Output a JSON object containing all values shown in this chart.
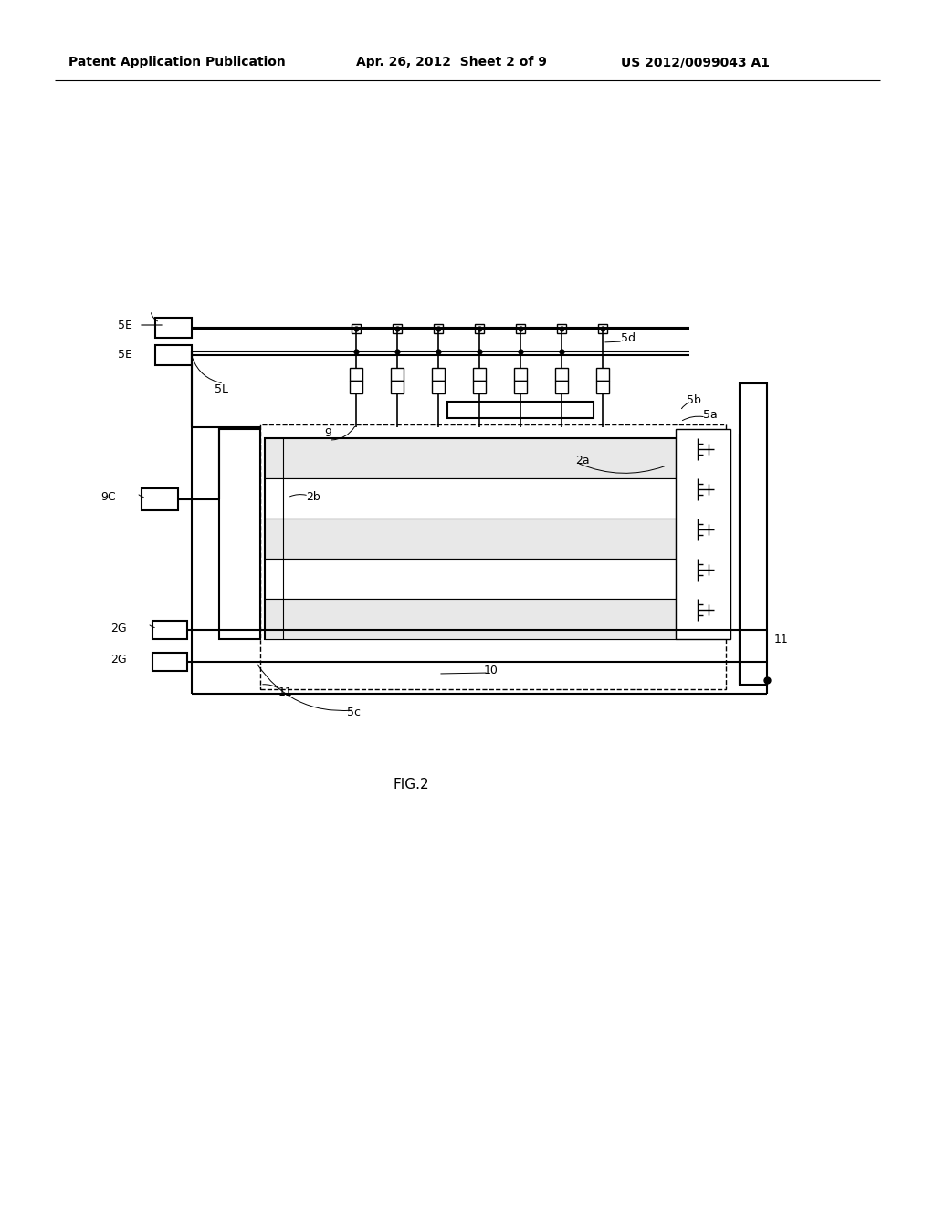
{
  "bg_color": "#ffffff",
  "line_color": "#000000",
  "header_left": "Patent Application Publication",
  "header_center": "Apr. 26, 2012  Sheet 2 of 9",
  "header_right": "US 2012/0099043 A1",
  "fig_label": "FIG.2",
  "labels": {
    "5E_top": "5E",
    "5E_bot": "5E",
    "5L": "5L",
    "9": "9",
    "5d": "5d",
    "5b": "5b",
    "5a": "5a",
    "9C": "9C",
    "2a": "2a",
    "2b": "2b",
    "10": "10",
    "11_left": "11",
    "11_right": "11",
    "2G_top": "2G",
    "2G_bot": "2G",
    "5c": "5c"
  }
}
